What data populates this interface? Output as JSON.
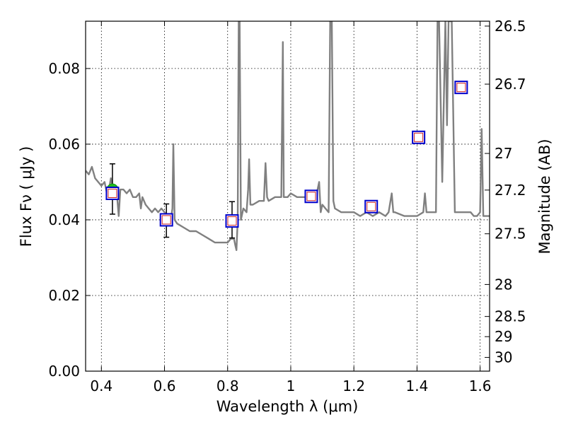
{
  "chart_data": {
    "type": "line",
    "xlabel": "Wavelength  λ (μm)",
    "ylabel": "Flux  Fν  ( μJy )",
    "y2label": "Magnitude (AB)",
    "xlim": [
      0.35,
      1.63
    ],
    "ylim": [
      0.0,
      0.0925
    ],
    "grid": true,
    "x_ticks": [
      0.4,
      0.6,
      0.8,
      1.0,
      1.2,
      1.4,
      1.6
    ],
    "x_tick_labels": [
      "0.4",
      "0.6",
      "0.8",
      "1",
      "1.2",
      "1.4",
      "1.6"
    ],
    "y_ticks": [
      0.0,
      0.02,
      0.04,
      0.06,
      0.08
    ],
    "y_tick_labels": [
      "0.00",
      "0.02",
      "0.04",
      "0.06",
      "0.08"
    ],
    "mag_ticks": [
      "26.5",
      "26.7",
      "27",
      "27.2",
      "27.5",
      "28",
      "28.5",
      "29",
      "30"
    ],
    "spectrum_color": "#808080",
    "spectrum": {
      "name": "",
      "x": [
        0.35,
        0.36,
        0.37,
        0.38,
        0.39,
        0.4,
        0.41,
        0.42,
        0.43,
        0.44,
        0.45,
        0.455,
        0.46,
        0.47,
        0.48,
        0.49,
        0.5,
        0.51,
        0.52,
        0.525,
        0.53,
        0.54,
        0.55,
        0.56,
        0.57,
        0.58,
        0.59,
        0.6,
        0.61,
        0.62,
        0.625,
        0.628,
        0.632,
        0.64,
        0.66,
        0.68,
        0.7,
        0.72,
        0.74,
        0.76,
        0.78,
        0.8,
        0.81,
        0.82,
        0.825,
        0.828,
        0.832,
        0.835,
        0.838,
        0.842,
        0.85,
        0.86,
        0.865,
        0.868,
        0.872,
        0.88,
        0.9,
        0.915,
        0.92,
        0.925,
        0.93,
        0.95,
        0.97,
        0.975,
        0.978,
        0.982,
        0.99,
        1.0,
        1.02,
        1.04,
        1.06,
        1.07,
        1.08,
        1.09,
        1.095,
        1.1,
        1.11,
        1.12,
        1.125,
        1.13,
        1.135,
        1.14,
        1.16,
        1.18,
        1.2,
        1.22,
        1.24,
        1.26,
        1.28,
        1.3,
        1.31,
        1.32,
        1.325,
        1.33,
        1.36,
        1.38,
        1.4,
        1.42,
        1.425,
        1.43,
        1.44,
        1.46,
        1.465,
        1.47,
        1.48,
        1.49,
        1.495,
        1.5,
        1.51,
        1.52,
        1.53,
        1.54,
        1.55,
        1.56,
        1.57,
        1.58,
        1.59,
        1.6,
        1.605,
        1.61,
        1.62,
        1.63
      ],
      "y": [
        0.053,
        0.052,
        0.054,
        0.051,
        0.05,
        0.049,
        0.05,
        0.046,
        0.051,
        0.047,
        0.046,
        0.041,
        0.048,
        0.048,
        0.047,
        0.048,
        0.046,
        0.046,
        0.047,
        0.043,
        0.046,
        0.044,
        0.043,
        0.042,
        0.043,
        0.042,
        0.043,
        0.042,
        0.041,
        0.04,
        0.043,
        0.06,
        0.04,
        0.039,
        0.038,
        0.037,
        0.037,
        0.036,
        0.035,
        0.034,
        0.034,
        0.034,
        0.035,
        0.035,
        0.033,
        0.032,
        0.04,
        0.0925,
        0.0925,
        0.04,
        0.043,
        0.042,
        0.048,
        0.056,
        0.044,
        0.044,
        0.045,
        0.045,
        0.055,
        0.046,
        0.045,
        0.046,
        0.046,
        0.087,
        0.046,
        0.046,
        0.046,
        0.047,
        0.046,
        0.046,
        0.046,
        0.047,
        0.046,
        0.05,
        0.042,
        0.044,
        0.043,
        0.042,
        0.0925,
        0.0925,
        0.045,
        0.043,
        0.042,
        0.042,
        0.042,
        0.041,
        0.042,
        0.041,
        0.042,
        0.041,
        0.042,
        0.047,
        0.042,
        0.042,
        0.041,
        0.041,
        0.041,
        0.042,
        0.047,
        0.042,
        0.042,
        0.042,
        0.0925,
        0.0925,
        0.05,
        0.0925,
        0.065,
        0.0925,
        0.0925,
        0.042,
        0.042,
        0.042,
        0.042,
        0.042,
        0.042,
        0.041,
        0.041,
        0.042,
        0.064,
        0.041,
        0.041,
        0.041
      ]
    },
    "photometry": {
      "x": [
        0.435,
        0.606,
        0.814
      ],
      "y": [
        0.048,
        0.0398,
        0.0398
      ],
      "yerr_low": [
        0.0415,
        0.0354,
        0.0352
      ],
      "yerr_high": [
        0.0548,
        0.0442,
        0.0448
      ],
      "color": "#22bb22"
    },
    "model_boxes": {
      "x": [
        0.435,
        0.606,
        0.814,
        1.065,
        1.255,
        1.405,
        1.54
      ],
      "y": [
        0.047,
        0.04,
        0.0397,
        0.0462,
        0.0435,
        0.0618,
        0.075
      ],
      "edge_color": "#0000cc",
      "inner_color": "#cc2222"
    }
  }
}
